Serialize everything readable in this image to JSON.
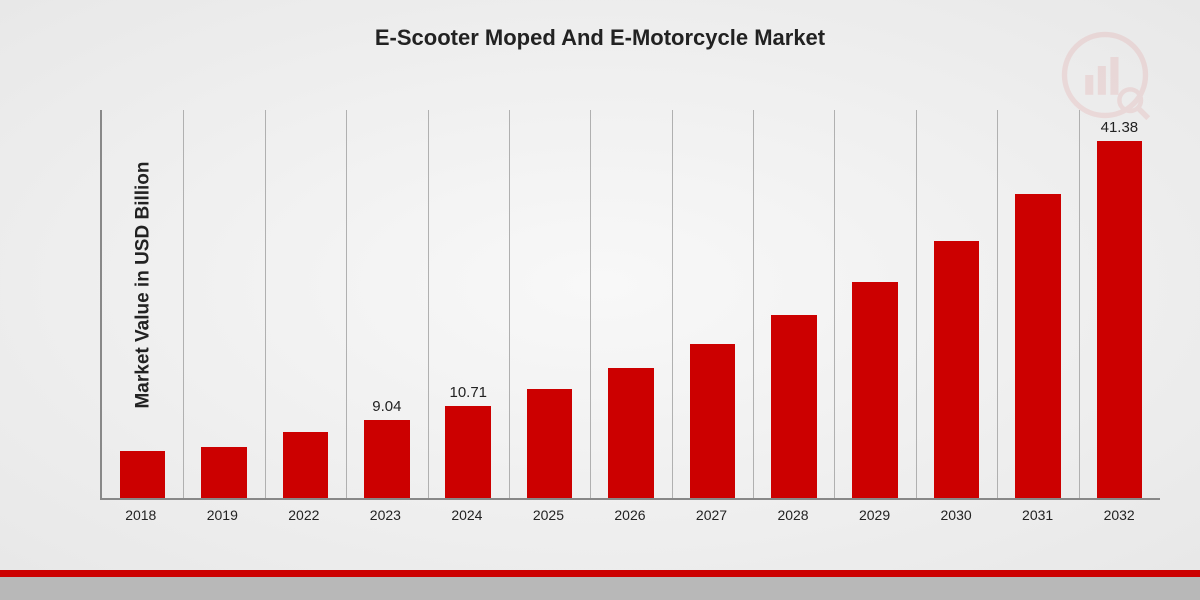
{
  "chart": {
    "type": "bar",
    "title": "E-Scooter Moped And E-Motorcycle Market",
    "title_fontsize": 22,
    "y_axis_label": "Market Value in USD Billion",
    "label_fontsize": 19,
    "categories": [
      "2018",
      "2019",
      "2022",
      "2023",
      "2024",
      "2025",
      "2026",
      "2027",
      "2028",
      "2029",
      "2030",
      "2031",
      "2032"
    ],
    "values": [
      5.4,
      5.9,
      7.6,
      9.04,
      10.71,
      12.7,
      15.1,
      17.9,
      21.2,
      25.1,
      29.8,
      35.3,
      41.38
    ],
    "value_labels": [
      "",
      "",
      "",
      "9.04",
      "10.71",
      "",
      "",
      "",
      "",
      "",
      "",
      "",
      "41.38"
    ],
    "ylim": [
      0,
      45
    ],
    "bar_color": "#cc0000",
    "background_color": "#f0f0f0",
    "grid_color": "#b0b0b0",
    "axis_color": "#888888",
    "bar_width": 0.56,
    "stripe_red_color": "#cc0000",
    "stripe_gray_color": "#b8b8b8"
  }
}
